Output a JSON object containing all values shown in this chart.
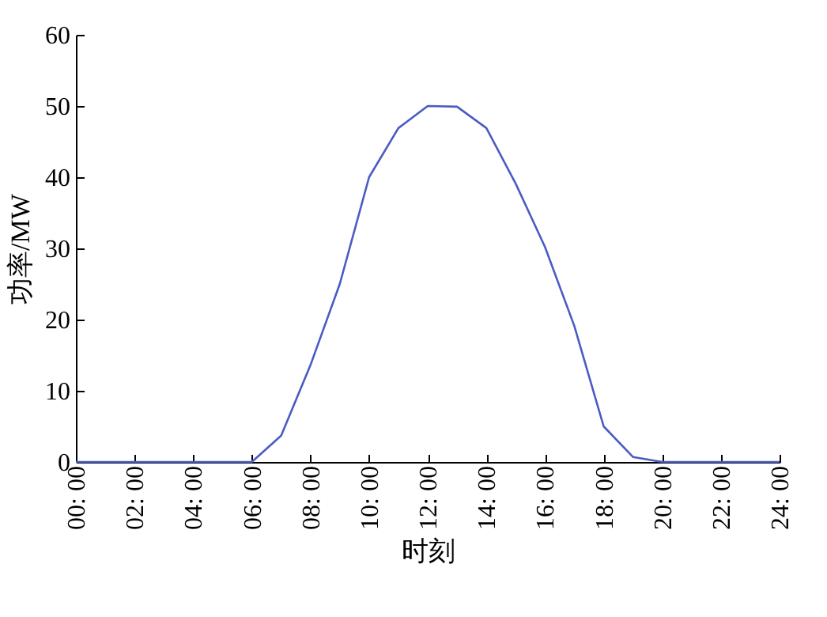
{
  "chart_data": {
    "type": "line",
    "xlabel": "时刻",
    "ylabel": "功率/MW",
    "categories": [
      "00: 00",
      null,
      "02: 00",
      null,
      "04: 00",
      null,
      "06: 00",
      null,
      "08: 00",
      null,
      "10: 00",
      null,
      "12: 00",
      null,
      "14: 00",
      null,
      "16: 00",
      null,
      "18: 00",
      null,
      "20: 00",
      null,
      "22: 00",
      null,
      "24: 00"
    ],
    "series": [
      {
        "color": "#4a5bc4",
        "values": [
          0,
          0,
          0,
          0,
          0,
          0,
          0,
          3.7,
          13.6,
          25,
          40,
          46.9,
          50,
          49.9,
          46.9,
          39.1,
          30.2,
          19.1,
          5,
          0.7,
          0,
          0,
          0,
          0,
          0
        ]
      }
    ],
    "ylim": [
      0,
      60
    ],
    "yticks": [
      0,
      10,
      20,
      30,
      40,
      50,
      60
    ],
    "grid": false,
    "legend": false,
    "marker": "none",
    "line_style": "solid"
  }
}
